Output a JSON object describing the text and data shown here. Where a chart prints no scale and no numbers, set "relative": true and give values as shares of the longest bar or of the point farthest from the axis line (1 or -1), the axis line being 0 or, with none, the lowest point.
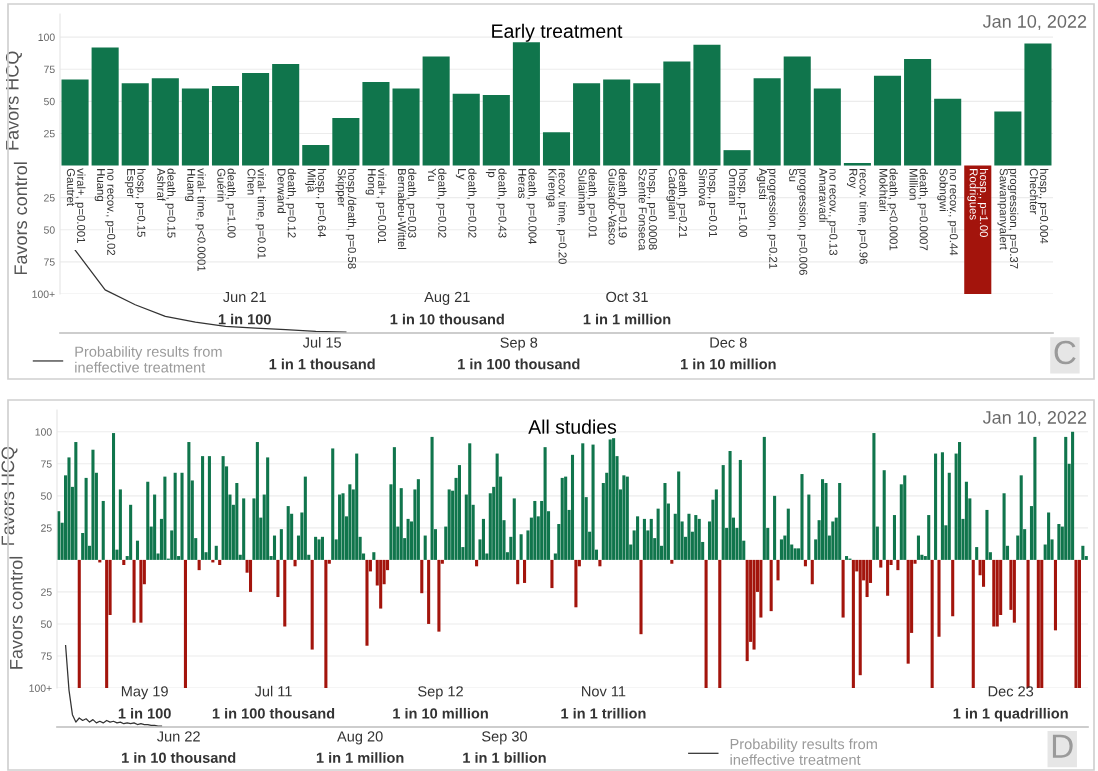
{
  "chart_data": [
    {
      "type": "bar",
      "title": "Early treatment",
      "subtitle": "Jan 10, 2022",
      "ylabel": "Favors HCQ",
      "annotations": [
        "Favors control"
      ],
      "categories": [
        "Gautret\nviral+, p=0.001",
        "Huang\nno recov., p=0.02",
        "Esper\nhosp., p=0.15",
        "Ashraf\ndeath, p=0.15",
        "Huang\nviral- time, p<0.0001",
        "Guérin\ndeath, p=1.00",
        "Chen\nviral- time, p=0.01",
        "Derwand\ndeath, p=0.12",
        "Mitjà\nhosp., p=0.64",
        "Skipper\nhosp./death, p=0.58",
        "Hong\nviral+, p=0.001",
        "Bernabeu-Wittel\ndeath, p=0.03",
        "Yu\ndeath, p=0.02",
        "Ly\ndeath, p=0.02",
        "Ip\ndeath, p=0.43",
        "Heras\ndeath, p=0.004",
        "Kirenga\nrecov. time, p=0.20",
        "Sulaiman\ndeath, p=0.01",
        "Guisado-Vasco\ndeath, p=0.19",
        "Szente Fonseca\nhosp., p=0.0008",
        "Cadegiani\ndeath, p=0.21",
        "Simova\nhosp., p=0.01",
        "Omrani\nhosp., p=1.00",
        "Agusti\nprogression, p=0.21",
        "Su\nprogression, p=0.006",
        "Amaravadi\nno recov., p=0.13",
        "Roy\nrecov. time, p=0.96",
        "Mokhtari\ndeath, p<0.0001",
        "Million\ndeath, p=0.0007",
        "Sobngwi\nno recov., p=0.44",
        "Rodrigues\nhosp., p=1.00",
        "Sawanpanyalert\nprogression, p=0.37",
        "Chechter\nhosp., p=0.004"
      ],
      "values": [
        67,
        92,
        64,
        68,
        60,
        62,
        72,
        79,
        16,
        37,
        65,
        60,
        85,
        56,
        55,
        96,
        26,
        64,
        67,
        64,
        81,
        94,
        12,
        68,
        85,
        60,
        2,
        70,
        83,
        52,
        -100,
        42,
        95
      ],
      "colors": [
        "#10754c",
        "#10754c",
        "#10754c",
        "#10754c",
        "#10754c",
        "#10754c",
        "#10754c",
        "#10754c",
        "#10754c",
        "#10754c",
        "#10754c",
        "#10754c",
        "#10754c",
        "#10754c",
        "#10754c",
        "#10754c",
        "#10754c",
        "#10754c",
        "#10754c",
        "#10754c",
        "#10754c",
        "#10754c",
        "#10754c",
        "#10754c",
        "#10754c",
        "#10754c",
        "#10754c",
        "#10754c",
        "#10754c",
        "#10754c",
        "#a3140c",
        "#10754c",
        "#10754c"
      ],
      "ylim": [
        -100,
        118
      ],
      "yticks": [
        100,
        75,
        50,
        25,
        {
          "value": -25,
          "label": "25"
        },
        {
          "value": -50,
          "label": "50"
        },
        {
          "value": -75,
          "label": "75"
        },
        {
          "value": -100,
          "label": "100+"
        }
      ],
      "grid": "y"
    },
    {
      "type": "line",
      "relative": true,
      "legend": "bottom left",
      "categories": [
        null,
        null,
        null,
        null,
        null,
        null,
        null,
        null,
        null,
        null,
        null,
        null,
        null,
        null,
        null,
        null,
        null,
        null,
        null,
        null,
        null,
        null,
        null,
        null,
        null,
        null,
        null,
        null,
        null,
        null,
        null,
        null,
        null
      ],
      "series": [
        {
          "name": "Probability results from ineffective treatment",
          "color": "#333333",
          "values": [
            1,
            0.52,
            0.34,
            0.2,
            0.13,
            0.08,
            0.06,
            0.04,
            0.02,
            0.01,
            null,
            null,
            null,
            null,
            null,
            null,
            null,
            null,
            null,
            null,
            null,
            null,
            null,
            null,
            null,
            null,
            null,
            null,
            null,
            null,
            null,
            null,
            null
          ]
        }
      ],
      "annotations": [
        "Jun 21\n1 in 100",
        "Jul 15\n1 in 1 thousand",
        "Aug 21\n1 in 10 thousand",
        "Sep 8\n1 in 100 thousand",
        "Oct 31\n1 in 1 million",
        "Dec 8\n1 in 10 million",
        "C"
      ]
    },
    {
      "type": "bar",
      "title": "All studies",
      "subtitle": "Jan 10, 2022",
      "ylabel": "Favors HCQ",
      "annotations": [
        "Favors control"
      ],
      "categories": [
        null,
        null,
        null,
        null,
        null,
        null,
        null,
        null,
        null,
        null,
        null,
        null,
        null,
        null,
        null,
        null,
        null,
        null,
        null,
        null,
        null,
        null,
        null,
        null,
        null,
        null,
        null,
        null,
        null,
        null,
        null,
        null,
        null,
        null,
        null,
        null,
        null,
        null,
        null,
        null,
        null,
        null,
        null,
        null,
        null,
        null,
        null,
        null,
        null,
        null,
        null,
        null,
        null,
        null,
        null,
        null,
        null,
        null,
        null,
        null,
        null,
        null,
        null,
        null,
        null,
        null,
        null,
        null,
        null,
        null,
        null,
        null,
        null,
        null,
        null,
        null,
        null,
        null,
        null,
        null,
        null,
        null,
        null,
        null,
        null,
        null,
        null,
        null,
        null,
        null,
        null,
        null,
        null,
        null,
        null,
        null,
        null,
        null,
        null,
        null,
        null,
        null,
        null,
        null,
        null,
        null,
        null,
        null,
        null,
        null,
        null,
        null,
        null,
        null,
        null,
        null,
        null,
        null,
        null,
        null,
        null,
        null,
        null,
        null,
        null,
        null,
        null,
        null,
        null,
        null,
        null,
        null,
        null,
        null,
        null,
        null,
        null,
        null,
        null,
        null,
        null,
        null,
        null,
        null,
        null,
        null,
        null,
        null,
        null,
        null,
        null,
        null,
        null,
        null,
        null,
        null,
        null,
        null,
        null,
        null,
        null,
        null,
        null,
        null,
        null,
        null,
        null,
        null,
        null,
        null,
        null,
        null,
        null,
        null,
        null,
        null,
        null,
        null,
        null,
        null,
        null,
        null,
        null,
        null,
        null,
        null,
        null,
        null,
        null,
        null,
        null,
        null,
        null,
        null,
        null,
        null,
        null,
        null,
        null,
        null,
        null,
        null,
        null,
        null,
        null,
        null,
        null,
        null,
        null,
        null,
        null,
        null,
        null,
        null,
        null,
        null,
        null,
        null,
        null,
        null,
        null,
        null,
        null,
        null,
        null,
        null,
        null,
        null,
        null,
        null,
        null,
        null,
        null,
        null,
        null,
        null,
        null,
        null,
        null,
        null,
        null,
        null,
        null,
        null,
        null,
        null,
        null,
        null,
        null,
        null,
        null,
        null,
        null,
        null,
        null,
        null,
        null,
        null,
        null,
        null,
        null,
        null,
        null,
        null,
        null,
        null,
        null,
        null,
        null,
        null,
        null,
        null,
        null,
        null,
        null,
        null,
        null,
        null,
        null,
        null,
        null,
        null,
        null,
        null,
        null,
        null,
        null,
        null,
        null,
        null,
        null,
        null,
        null,
        null,
        null,
        null,
        null,
        null,
        null,
        null,
        null
      ],
      "values": [
        38,
        29,
        66,
        80,
        57,
        92,
        -100,
        21,
        64,
        11,
        86,
        68,
        -2,
        46,
        -100,
        -43,
        99,
        8,
        55,
        -4,
        3,
        43,
        -49,
        15,
        -49,
        -19,
        61,
        26,
        51,
        5,
        32,
        65,
        1,
        23,
        68,
        3,
        68,
        -100,
        92,
        62,
        17,
        -8,
        81,
        6,
        81,
        -2,
        11,
        -4,
        81,
        73,
        51,
        43,
        60,
        4,
        48,
        -10,
        -25,
        48,
        92,
        33,
        51,
        80,
        3,
        19,
        -29,
        24,
        -52,
        42,
        36,
        -5,
        19,
        37,
        65,
        4,
        -70,
        18,
        16,
        18,
        -100,
        -3,
        87,
        16,
        51,
        52,
        34,
        59,
        55,
        83,
        18,
        5,
        -67,
        -9,
        6,
        -20,
        -38,
        -19,
        -8,
        59,
        88,
        26,
        56,
        17,
        32,
        30,
        55,
        63,
        -26,
        19,
        -50,
        96,
        24,
        -56,
        -3,
        26,
        55,
        54,
        64,
        74,
        10,
        51,
        91,
        43,
        -5,
        16,
        32,
        5,
        52,
        57,
        83,
        65,
        31,
        6,
        18,
        48,
        -19,
        20,
        -18,
        23,
        33,
        46,
        34,
        46,
        88,
        38,
        -22,
        5,
        28,
        64,
        65,
        39,
        82,
        -37,
        -5,
        91,
        49,
        22,
        90,
        8,
        -5,
        60,
        68,
        94,
        95,
        81,
        55,
        66,
        65,
        12,
        23,
        34,
        -58,
        32,
        23,
        32,
        17,
        40,
        11,
        60,
        44,
        -3,
        36,
        69,
        30,
        18,
        36,
        22,
        35,
        32,
        14,
        -100,
        30,
        47,
        55,
        -100,
        74,
        25,
        85,
        33,
        25,
        78,
        15,
        -79,
        -64,
        -70,
        -25,
        -45,
        96,
        25,
        -40,
        50,
        -16,
        16,
        19,
        40,
        12,
        9,
        9,
        67,
        -5,
        51,
        -19,
        16,
        31,
        63,
        60,
        19,
        30,
        33,
        60,
        -45,
        3,
        1,
        -100,
        -9,
        -90,
        -16,
        -29,
        -18,
        99,
        26,
        -6,
        70,
        -28,
        -4,
        35,
        -8,
        59,
        66,
        -81,
        -57,
        -3,
        19,
        4,
        3,
        35,
        -100,
        83,
        -60,
        84,
        27,
        68,
        -44,
        83,
        92,
        32,
        61,
        48,
        -100,
        10,
        -12,
        -21,
        39,
        6,
        -52,
        -52,
        -43,
        52,
        11,
        -39,
        -49,
        19,
        66,
        24,
        -100,
        42,
        96,
        -100,
        -100,
        12,
        37,
        16,
        -55,
        28,
        26,
        96,
        75,
        100,
        -100,
        -100,
        11,
        3
      ],
      "colors": [
        "#10754c",
        "#10754c",
        "#10754c",
        "#10754c",
        "#10754c",
        "#10754c",
        "#a3140c",
        "#10754c",
        "#10754c",
        "#10754c",
        "#10754c",
        "#10754c",
        "#a3140c",
        "#10754c",
        "#a3140c",
        "#a3140c",
        "#10754c",
        "#10754c",
        "#10754c",
        "#a3140c",
        "#10754c",
        "#10754c",
        "#a3140c",
        "#10754c",
        "#a3140c",
        "#a3140c",
        "#10754c",
        "#10754c",
        "#10754c",
        "#10754c",
        "#10754c",
        "#10754c",
        "#10754c",
        "#10754c",
        "#10754c",
        "#10754c",
        "#10754c",
        "#a3140c",
        "#10754c",
        "#10754c",
        "#10754c",
        "#a3140c",
        "#10754c",
        "#10754c",
        "#10754c",
        "#a3140c",
        "#10754c",
        "#a3140c",
        "#10754c",
        "#10754c",
        "#10754c",
        "#10754c",
        "#10754c",
        "#10754c",
        "#10754c",
        "#a3140c",
        "#a3140c",
        "#10754c",
        "#10754c",
        "#10754c",
        "#10754c",
        "#10754c",
        "#10754c",
        "#10754c",
        "#a3140c",
        "#10754c",
        "#a3140c",
        "#10754c",
        "#10754c",
        "#a3140c",
        "#10754c",
        "#10754c",
        "#10754c",
        "#10754c",
        "#a3140c",
        "#10754c",
        "#10754c",
        "#10754c",
        "#a3140c",
        "#a3140c",
        "#10754c",
        "#10754c",
        "#10754c",
        "#10754c",
        "#10754c",
        "#10754c",
        "#10754c",
        "#10754c",
        "#10754c",
        "#10754c",
        "#a3140c",
        "#a3140c",
        "#10754c",
        "#a3140c",
        "#a3140c",
        "#a3140c",
        "#a3140c",
        "#10754c",
        "#10754c",
        "#10754c",
        "#10754c",
        "#10754c",
        "#10754c",
        "#10754c",
        "#10754c",
        "#10754c",
        "#a3140c",
        "#10754c",
        "#a3140c",
        "#10754c",
        "#10754c",
        "#a3140c",
        "#a3140c",
        "#10754c",
        "#10754c",
        "#10754c",
        "#10754c",
        "#10754c",
        "#10754c",
        "#10754c",
        "#10754c",
        "#10754c",
        "#a3140c",
        "#10754c",
        "#10754c",
        "#10754c",
        "#10754c",
        "#10754c",
        "#10754c",
        "#10754c",
        "#10754c",
        "#10754c",
        "#10754c",
        "#10754c",
        "#a3140c",
        "#10754c",
        "#a3140c",
        "#10754c",
        "#10754c",
        "#10754c",
        "#10754c",
        "#10754c",
        "#10754c",
        "#10754c",
        "#a3140c",
        "#10754c",
        "#10754c",
        "#10754c",
        "#10754c",
        "#10754c",
        "#10754c",
        "#a3140c",
        "#a3140c",
        "#10754c",
        "#10754c",
        "#10754c",
        "#10754c",
        "#10754c",
        "#a3140c",
        "#10754c",
        "#10754c",
        "#10754c",
        "#10754c",
        "#10754c",
        "#10754c",
        "#10754c",
        "#10754c",
        "#10754c",
        "#10754c",
        "#10754c",
        "#a3140c",
        "#10754c",
        "#10754c",
        "#10754c",
        "#10754c",
        "#10754c",
        "#10754c",
        "#10754c",
        "#10754c",
        "#a3140c",
        "#10754c",
        "#10754c",
        "#10754c",
        "#10754c",
        "#10754c",
        "#10754c",
        "#10754c",
        "#10754c",
        "#10754c",
        "#a3140c",
        "#10754c",
        "#10754c",
        "#10754c",
        "#a3140c",
        "#10754c",
        "#10754c",
        "#10754c",
        "#10754c",
        "#10754c",
        "#10754c",
        "#10754c",
        "#a3140c",
        "#a3140c",
        "#a3140c",
        "#a3140c",
        "#a3140c",
        "#10754c",
        "#10754c",
        "#a3140c",
        "#10754c",
        "#a3140c",
        "#10754c",
        "#10754c",
        "#10754c",
        "#10754c",
        "#10754c",
        "#10754c",
        "#10754c",
        "#a3140c",
        "#10754c",
        "#a3140c",
        "#10754c",
        "#10754c",
        "#10754c",
        "#10754c",
        "#10754c",
        "#10754c",
        "#10754c",
        "#10754c",
        "#a3140c",
        "#10754c",
        "#10754c",
        "#a3140c",
        "#a3140c",
        "#a3140c",
        "#a3140c",
        "#a3140c",
        "#a3140c",
        "#10754c",
        "#10754c",
        "#a3140c",
        "#10754c",
        "#a3140c",
        "#a3140c",
        "#10754c",
        "#a3140c",
        "#10754c",
        "#10754c",
        "#a3140c",
        "#a3140c",
        "#a3140c",
        "#10754c",
        "#10754c",
        "#10754c",
        "#10754c",
        "#a3140c",
        "#10754c",
        "#a3140c",
        "#10754c",
        "#10754c",
        "#10754c",
        "#a3140c",
        "#10754c",
        "#10754c",
        "#10754c",
        "#10754c",
        "#10754c",
        "#a3140c",
        "#10754c",
        "#a3140c",
        "#a3140c",
        "#10754c",
        "#10754c",
        "#a3140c",
        "#a3140c",
        "#a3140c",
        "#10754c",
        "#10754c",
        "#a3140c",
        "#a3140c",
        "#10754c",
        "#10754c",
        "#10754c",
        "#a3140c",
        "#10754c",
        "#10754c",
        "#a3140c",
        "#a3140c",
        "#10754c",
        "#10754c",
        "#10754c",
        "#a3140c",
        "#10754c",
        "#10754c",
        "#10754c",
        "#10754c",
        "#10754c",
        "#a3140c",
        "#a3140c",
        "#10754c",
        "#10754c"
      ],
      "ylim": [
        -100,
        117
      ],
      "yticks": [
        100,
        75,
        50,
        25,
        {
          "value": -25,
          "label": "25"
        },
        {
          "value": -50,
          "label": "50"
        },
        {
          "value": -75,
          "label": "75"
        },
        {
          "value": -100,
          "label": "100+"
        }
      ],
      "grid": "y"
    },
    {
      "type": "line",
      "relative": true,
      "legend": "bottom",
      "categories": [
        null,
        null,
        null,
        null,
        null,
        null,
        null,
        null,
        null,
        null,
        null,
        null,
        null,
        null,
        null,
        null,
        null,
        null,
        null,
        null,
        null,
        null,
        null,
        null,
        null,
        null,
        null,
        null,
        null,
        null,
        null,
        null,
        null,
        null,
        null,
        null,
        null,
        null,
        null,
        null,
        null,
        null,
        null,
        null,
        null,
        null,
        null,
        null,
        null,
        null,
        null,
        null,
        null,
        null,
        null,
        null,
        null,
        null,
        null,
        null,
        null,
        null,
        null,
        null,
        null,
        null,
        null,
        null,
        null,
        null,
        null,
        null,
        null,
        null,
        null,
        null,
        null,
        null,
        null,
        null,
        null,
        null,
        null,
        null,
        null,
        null,
        null,
        null,
        null,
        null,
        null,
        null,
        null,
        null,
        null,
        null,
        null,
        null,
        null,
        null,
        null,
        null,
        null,
        null,
        null,
        null,
        null,
        null,
        null,
        null,
        null,
        null,
        null,
        null,
        null,
        null,
        null,
        null,
        null,
        null,
        null,
        null,
        null,
        null,
        null,
        null,
        null,
        null,
        null,
        null,
        null,
        null,
        null,
        null,
        null,
        null,
        null,
        null,
        null,
        null,
        null,
        null,
        null,
        null,
        null,
        null,
        null,
        null,
        null,
        null,
        null,
        null,
        null,
        null,
        null,
        null,
        null,
        null,
        null,
        null,
        null,
        null,
        null,
        null,
        null,
        null,
        null,
        null,
        null,
        null,
        null,
        null,
        null,
        null,
        null,
        null,
        null,
        null,
        null,
        null,
        null,
        null,
        null,
        null,
        null,
        null,
        null,
        null,
        null,
        null,
        null,
        null,
        null,
        null,
        null,
        null,
        null,
        null,
        null,
        null,
        null,
        null,
        null,
        null,
        null,
        null,
        null,
        null,
        null,
        null,
        null,
        null,
        null,
        null,
        null,
        null,
        null,
        null,
        null,
        null,
        null,
        null,
        null,
        null,
        null,
        null,
        null,
        null,
        null,
        null,
        null,
        null,
        null,
        null,
        null,
        null,
        null,
        null,
        null,
        null,
        null,
        null,
        null,
        null,
        null,
        null,
        null,
        null,
        null,
        null,
        null,
        null,
        null,
        null,
        null,
        null,
        null,
        null,
        null,
        null,
        null,
        null,
        null,
        null,
        null,
        null,
        null,
        null,
        null,
        null,
        null,
        null,
        null,
        null,
        null,
        null,
        null,
        null,
        null,
        null,
        null,
        null,
        null,
        null,
        null,
        null,
        null,
        null,
        null,
        null,
        null,
        null,
        null,
        null,
        null,
        null,
        null,
        null,
        null,
        null,
        null
      ],
      "series": [
        {
          "name": "Probability results from ineffective treatment",
          "color": "#333333",
          "values": [
            null,
            null,
            1,
            0.45,
            0.15,
            0.06,
            0.11,
            0.08,
            0.1,
            0.06,
            0.09,
            0.05,
            0.07,
            0.05,
            0.08,
            0.06,
            0.07,
            0.05,
            0.06,
            0.04,
            0.05,
            0.04,
            0.05,
            0.03,
            0.04,
            0.03,
            0.03,
            0.02,
            0.02,
            0.01,
            0.01,
            null,
            null,
            null,
            null,
            null,
            null,
            null,
            null,
            null,
            null,
            null,
            null,
            null,
            null,
            null,
            null,
            null,
            null,
            null,
            null,
            null,
            null,
            null,
            null,
            null,
            null,
            null,
            null,
            null,
            null,
            null,
            null,
            null,
            null,
            null,
            null,
            null,
            null,
            null,
            null,
            null,
            null,
            null,
            null,
            null,
            null,
            null,
            null,
            null,
            null,
            null,
            null,
            null,
            null,
            null,
            null,
            null,
            null,
            null,
            null,
            null,
            null,
            null,
            null,
            null,
            null,
            null,
            null,
            null,
            null,
            null,
            null,
            null,
            null,
            null,
            null,
            null,
            null,
            null,
            null,
            null,
            null,
            null,
            null,
            null,
            null,
            null,
            null,
            null,
            null,
            null,
            null,
            null,
            null,
            null,
            null,
            null,
            null,
            null,
            null,
            null,
            null,
            null,
            null,
            null,
            null,
            null,
            null,
            null,
            null,
            null,
            null,
            null,
            null,
            null,
            null,
            null,
            null,
            null,
            null,
            null,
            null,
            null,
            null,
            null,
            null,
            null,
            null,
            null,
            null,
            null,
            null,
            null,
            null,
            null,
            null,
            null,
            null,
            null,
            null,
            null,
            null,
            null,
            null,
            null,
            null,
            null,
            null,
            null,
            null,
            null,
            null,
            null,
            null,
            null,
            null,
            null,
            null,
            null,
            null,
            null,
            null,
            null,
            null,
            null,
            null,
            null,
            null,
            null,
            null,
            null,
            null,
            null,
            null,
            null,
            null,
            null,
            null,
            null,
            null,
            null,
            null,
            null,
            null,
            null,
            null,
            null,
            null,
            null,
            null,
            null,
            null,
            null,
            null,
            null,
            null,
            null,
            null,
            null,
            null,
            null,
            null,
            null,
            null,
            null,
            null,
            null,
            null,
            null,
            null,
            null,
            null,
            null,
            null,
            null,
            null,
            null,
            null,
            null,
            null,
            null,
            null,
            null,
            null,
            null,
            null,
            null,
            null,
            null,
            null,
            null,
            null,
            null,
            null,
            null,
            null,
            null,
            null,
            null,
            null,
            null,
            null,
            null,
            null,
            null,
            null,
            null,
            null,
            null,
            null,
            null,
            null,
            null,
            null,
            null,
            null,
            null,
            null,
            null,
            null,
            null,
            null,
            null,
            null,
            null,
            null,
            null,
            null,
            null,
            null
          ]
        }
      ],
      "annotations": [
        "May 19\n1 in 100",
        "Jun 22\n1 in 10 thousand",
        "Jul 11\n1 in 100 thousand",
        "Aug 20\n1 in 1 million",
        "Sep 12\n1 in 10 million",
        "Sep 30\n1 in 1 billion",
        "Nov 11\n1 in 1 trillion",
        "Dec 23\n1 in 1 quadrillion",
        "D"
      ]
    }
  ]
}
